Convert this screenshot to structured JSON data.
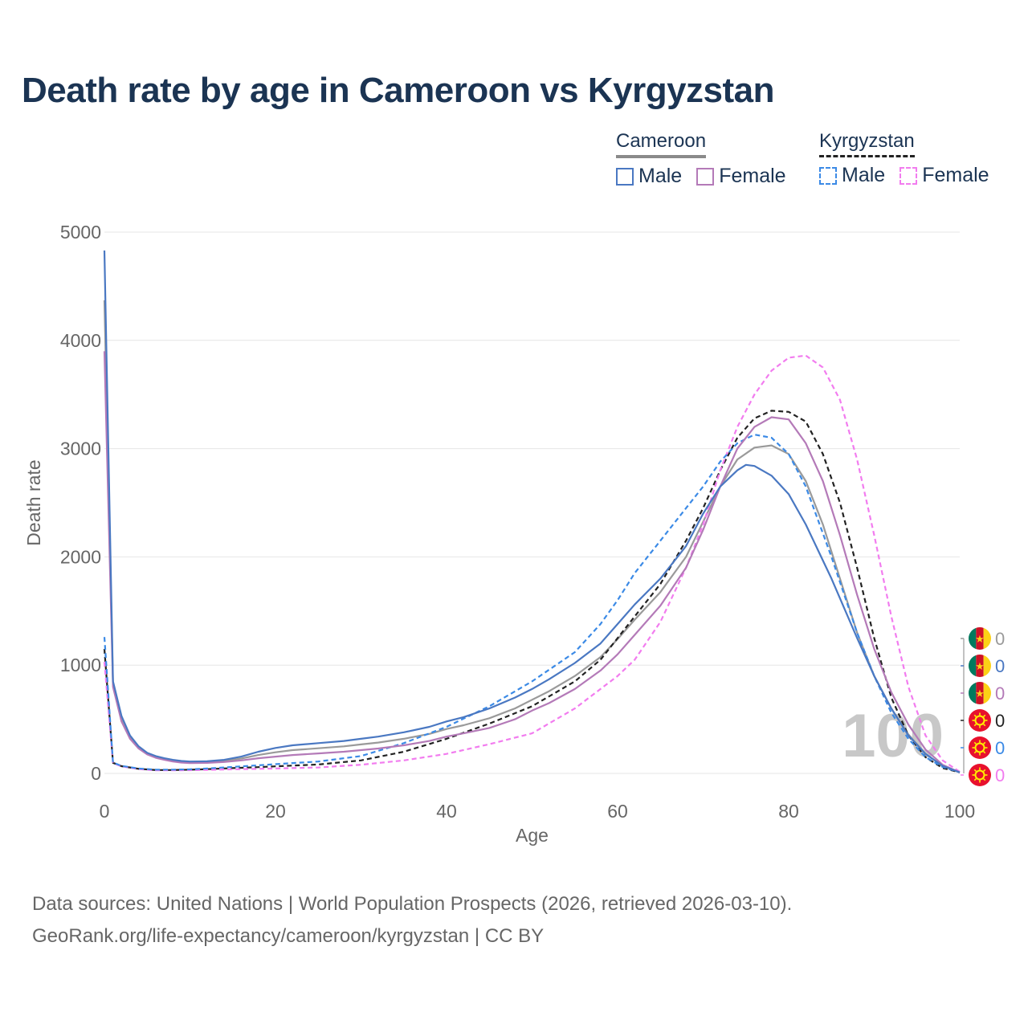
{
  "title": "Death rate by age in Cameroon vs Kyrgyzstan",
  "legend": {
    "groups": [
      {
        "name": "Cameroon",
        "style": "solid",
        "items": [
          {
            "label": "Male",
            "color": "#4a78c2"
          },
          {
            "label": "Female",
            "color": "#b47ab8"
          }
        ]
      },
      {
        "name": "Kyrgyzstan",
        "style": "dashed",
        "items": [
          {
            "label": "Male",
            "color": "#3b8ae6"
          },
          {
            "label": "Female",
            "color": "#f27cef"
          }
        ]
      }
    ]
  },
  "chart_data": {
    "type": "line",
    "title": "Death rate by age in Cameroon vs Kyrgyzstan",
    "xlabel": "Age",
    "ylabel": "Death rate",
    "xlim": [
      0,
      100
    ],
    "ylim": [
      0,
      5000
    ],
    "xticks": [
      0,
      20,
      40,
      60,
      80,
      100
    ],
    "yticks": [
      0,
      1000,
      2000,
      3000,
      4000,
      5000
    ],
    "grid": true,
    "year_watermark": "100",
    "series": [
      {
        "name": "Cameroon Male",
        "country": "Cameroon",
        "sex": "Male",
        "color": "#4a78c2",
        "dash": false,
        "end_label": "0",
        "x": [
          0,
          1,
          2,
          3,
          4,
          5,
          6,
          7,
          8,
          9,
          10,
          12,
          14,
          16,
          18,
          20,
          22,
          25,
          28,
          30,
          32,
          35,
          38,
          40,
          42,
          45,
          48,
          50,
          52,
          55,
          58,
          60,
          62,
          65,
          68,
          70,
          72,
          74,
          75,
          76,
          78,
          80,
          82,
          85,
          88,
          90,
          92,
          94,
          96,
          98,
          100
        ],
        "y": [
          4830,
          850,
          530,
          350,
          250,
          190,
          160,
          140,
          125,
          115,
          110,
          112,
          125,
          155,
          200,
          235,
          260,
          280,
          300,
          320,
          340,
          380,
          430,
          480,
          520,
          600,
          700,
          780,
          870,
          1020,
          1200,
          1380,
          1560,
          1800,
          2100,
          2400,
          2650,
          2800,
          2850,
          2840,
          2750,
          2580,
          2300,
          1800,
          1250,
          900,
          600,
          350,
          180,
          70,
          10
        ]
      },
      {
        "name": "Cameroon Female",
        "country": "Cameroon",
        "sex": "Female",
        "color": "#b47ab8",
        "dash": false,
        "end_label": "0",
        "x": [
          0,
          1,
          2,
          3,
          4,
          5,
          6,
          7,
          8,
          9,
          10,
          12,
          14,
          16,
          18,
          20,
          22,
          25,
          28,
          30,
          32,
          35,
          38,
          40,
          42,
          45,
          48,
          50,
          52,
          55,
          58,
          60,
          62,
          65,
          68,
          70,
          72,
          74,
          76,
          78,
          80,
          82,
          84,
          86,
          88,
          90,
          92,
          94,
          96,
          98,
          100
        ],
        "y": [
          3900,
          800,
          480,
          320,
          230,
          175,
          145,
          125,
          110,
          100,
          95,
          97,
          105,
          120,
          140,
          155,
          170,
          185,
          200,
          215,
          230,
          260,
          300,
          340,
          370,
          420,
          500,
          580,
          650,
          780,
          950,
          1100,
          1280,
          1550,
          1900,
          2250,
          2650,
          3000,
          3200,
          3290,
          3270,
          3050,
          2700,
          2200,
          1650,
          1150,
          750,
          450,
          220,
          80,
          10
        ]
      },
      {
        "name": "Cameroon Both",
        "country": "Cameroon",
        "sex": "Both",
        "color": "#9a9a9a",
        "dash": false,
        "end_label": "0",
        "x": [
          0,
          1,
          2,
          3,
          4,
          5,
          6,
          7,
          8,
          9,
          10,
          12,
          14,
          16,
          18,
          20,
          22,
          25,
          28,
          30,
          32,
          35,
          38,
          40,
          42,
          45,
          48,
          50,
          52,
          55,
          58,
          60,
          62,
          65,
          68,
          70,
          72,
          74,
          76,
          78,
          80,
          82,
          84,
          86,
          88,
          90,
          92,
          94,
          96,
          98,
          100
        ],
        "y": [
          4370,
          825,
          505,
          335,
          240,
          182,
          152,
          132,
          117,
          107,
          102,
          104,
          115,
          137,
          170,
          195,
          215,
          232,
          250,
          268,
          285,
          320,
          365,
          410,
          445,
          510,
          600,
          680,
          760,
          900,
          1075,
          1240,
          1420,
          1675,
          2000,
          2325,
          2650,
          2900,
          3010,
          3030,
          2950,
          2700,
          2300,
          1800,
          1300,
          900,
          600,
          360,
          180,
          70,
          10
        ]
      },
      {
        "name": "Kyrgyzstan Male",
        "country": "Kyrgyzstan",
        "sex": "Male",
        "color": "#3b8ae6",
        "dash": true,
        "end_label": "0",
        "x": [
          0,
          1,
          2,
          4,
          6,
          8,
          10,
          12,
          15,
          18,
          20,
          25,
          30,
          35,
          40,
          45,
          50,
          55,
          58,
          60,
          62,
          65,
          68,
          70,
          72,
          74,
          76,
          78,
          80,
          82,
          85,
          88,
          90,
          92,
          94,
          96,
          98,
          100
        ],
        "y": [
          1260,
          100,
          70,
          45,
          35,
          35,
          38,
          45,
          60,
          75,
          85,
          110,
          160,
          280,
          430,
          620,
          850,
          1120,
          1380,
          1600,
          1850,
          2150,
          2450,
          2650,
          2880,
          3050,
          3130,
          3100,
          2950,
          2650,
          2000,
          1300,
          900,
          560,
          320,
          150,
          60,
          10
        ]
      },
      {
        "name": "Kyrgyzstan Female",
        "country": "Kyrgyzstan",
        "sex": "Female",
        "color": "#f27cef",
        "dash": true,
        "end_label": "0",
        "x": [
          0,
          1,
          2,
          4,
          6,
          8,
          10,
          12,
          15,
          18,
          20,
          25,
          30,
          35,
          40,
          45,
          50,
          55,
          58,
          60,
          62,
          65,
          68,
          70,
          72,
          74,
          76,
          78,
          80,
          82,
          84,
          86,
          88,
          90,
          92,
          94,
          96,
          98,
          100
        ],
        "y": [
          1030,
          95,
          65,
          40,
          28,
          28,
          30,
          33,
          38,
          42,
          45,
          55,
          80,
          120,
          180,
          270,
          370,
          600,
          780,
          900,
          1050,
          1400,
          1900,
          2300,
          2800,
          3200,
          3500,
          3720,
          3840,
          3860,
          3750,
          3450,
          2900,
          2200,
          1450,
          800,
          350,
          120,
          15
        ]
      },
      {
        "name": "Kyrgyzstan Both",
        "country": "Kyrgyzstan",
        "sex": "Both",
        "color": "#222222",
        "dash": true,
        "end_label": "0",
        "x": [
          0,
          1,
          2,
          4,
          6,
          8,
          10,
          12,
          15,
          18,
          20,
          25,
          30,
          35,
          40,
          45,
          50,
          55,
          58,
          60,
          62,
          65,
          68,
          70,
          72,
          74,
          76,
          78,
          80,
          82,
          84,
          86,
          88,
          90,
          92,
          94,
          96,
          98,
          100
        ],
        "y": [
          1150,
          98,
          67,
          42,
          31,
          31,
          34,
          39,
          49,
          58,
          65,
          82,
          120,
          200,
          320,
          460,
          620,
          850,
          1050,
          1250,
          1450,
          1750,
          2150,
          2450,
          2800,
          3100,
          3280,
          3350,
          3340,
          3250,
          2950,
          2500,
          1900,
          1250,
          700,
          350,
          150,
          50,
          10
        ]
      }
    ],
    "end_markers": [
      {
        "country": "Cameroon",
        "label": "0",
        "color": "#9a9a9a"
      },
      {
        "country": "Cameroon",
        "label": "0",
        "color": "#4a78c2"
      },
      {
        "country": "Cameroon",
        "label": "0",
        "color": "#b47ab8"
      },
      {
        "country": "Kyrgyzstan",
        "label": "0",
        "color": "#222222"
      },
      {
        "country": "Kyrgyzstan",
        "label": "0",
        "color": "#3b8ae6"
      },
      {
        "country": "Kyrgyzstan",
        "label": "0",
        "color": "#f27cef"
      }
    ]
  },
  "source": {
    "line1": "Data sources: United Nations | World Population Prospects (2026, retrieved 2026-03-10).",
    "line2": "GeoRank.org/life-expectancy/cameroon/kyrgyzstan | CC BY"
  }
}
